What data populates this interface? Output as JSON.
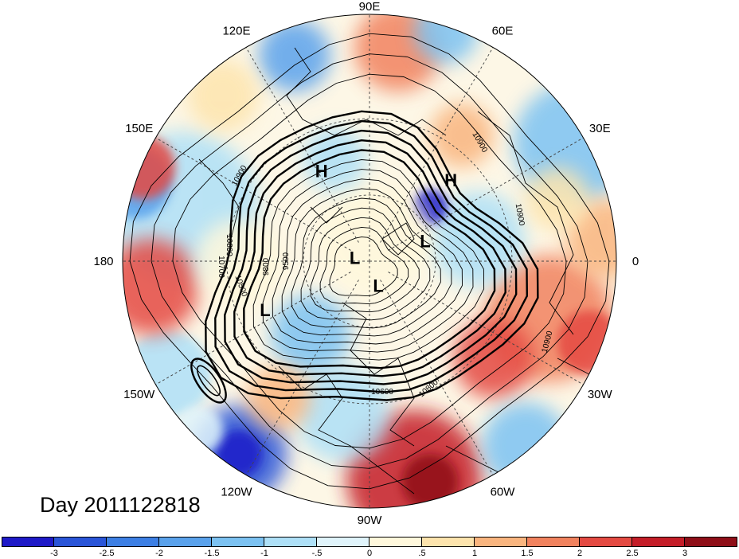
{
  "map": {
    "projection": "north polar stereographic",
    "longitude_labels": [
      {
        "text": "90E",
        "lon": 90
      },
      {
        "text": "60E",
        "lon": 60
      },
      {
        "text": "30E",
        "lon": 30
      },
      {
        "text": "0",
        "lon": 0
      },
      {
        "text": "30W",
        "lon": -30
      },
      {
        "text": "60W",
        "lon": -60
      },
      {
        "text": "90W",
        "lon": -90
      },
      {
        "text": "120W",
        "lon": -120
      },
      {
        "text": "150W",
        "lon": -150
      },
      {
        "text": "180",
        "lon": 180
      },
      {
        "text": "150E",
        "lon": 150
      },
      {
        "text": "120E",
        "lon": 120
      }
    ],
    "pressure_centers": [
      {
        "type": "H",
        "label": "H",
        "lat": 45,
        "lon": 118
      },
      {
        "type": "H",
        "label": "H",
        "lat": 40,
        "lon": 45
      },
      {
        "type": "L",
        "label": "L",
        "lat": 63,
        "lon": 20
      },
      {
        "type": "L",
        "label": "L",
        "lat": 83,
        "lon": 166
      },
      {
        "type": "L",
        "label": "L",
        "lat": 78,
        "lon": -70
      },
      {
        "type": "L",
        "label": "L",
        "lat": 40,
        "lon": -155
      }
    ],
    "contour_labels": [
      "10900",
      "10900",
      "10900",
      "10800",
      "10800",
      "9800",
      "9500",
      "10900",
      "10700",
      "10600",
      "10500"
    ],
    "colors": {
      "ocean_neutral": "#fdf7e6",
      "gridline": "#555555",
      "contour": "#000000"
    }
  },
  "day_label": "Day 2011122818",
  "colorbar": {
    "tick_labels": [
      "-3",
      "-2.5",
      "-2",
      "-1.5",
      "-1",
      "-.5",
      "0",
      ".5",
      "1",
      "1.5",
      "2",
      "2.5",
      "3"
    ],
    "colors": [
      "#1f1ac8",
      "#2a55d8",
      "#3d7fe4",
      "#5aa2ec",
      "#7cc2f2",
      "#aee0f7",
      "#e0f4fb",
      "#fff8dc",
      "#fde4ad",
      "#f9b57f",
      "#f1825e",
      "#e44a42",
      "#c41d28",
      "#8f0f18"
    ]
  }
}
